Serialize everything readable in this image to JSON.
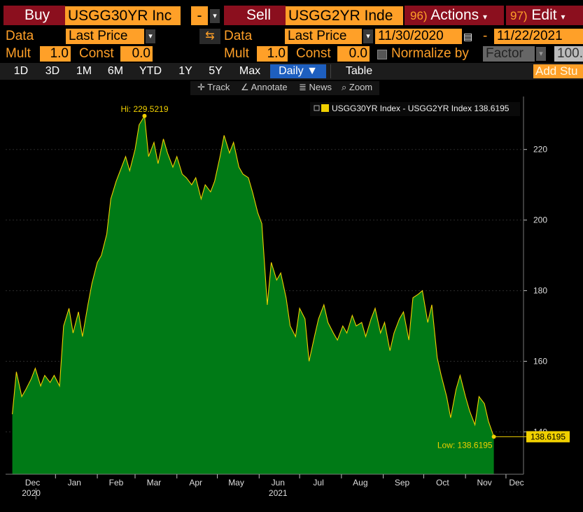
{
  "toolbar": {
    "buy_label": "Buy",
    "buy_ticker": "USGG30YR Inc",
    "op_symbol": "-",
    "sell_label": "Sell",
    "sell_ticker": "USGG2YR Inde",
    "actions_num": "96)",
    "actions_label": "Actions",
    "edit_num": "97)",
    "edit_label": "Edit"
  },
  "data_row": {
    "data_label_1": "Data",
    "field_1": "Last Price",
    "data_label_2": "Data",
    "field_2": "Last Price",
    "start_date": "11/30/2020",
    "separator": "-",
    "end_date": "11/22/2021"
  },
  "mult_row": {
    "mult_label_1": "Mult",
    "mult_value_1": "1.0",
    "const_label_1": "Const",
    "const_value_1": "0.0",
    "mult_label_2": "Mult",
    "mult_value_2": "1.0",
    "const_label_2": "Const",
    "const_value_2": "0.0",
    "normalize_label": "Normalize by",
    "normalize_field": "Factor",
    "normalize_value": "100."
  },
  "periods": [
    "1D",
    "3D",
    "1M",
    "6M",
    "YTD",
    "1Y",
    "5Y",
    "Max"
  ],
  "frequency": "Daily",
  "table_label": "Table",
  "add_study": "Add Stu",
  "tools": {
    "track": "Track",
    "annotate": "Annotate",
    "news": "News",
    "zoom": "Zoom"
  },
  "colors": {
    "area_fill": "#007a16",
    "line": "#f0d000",
    "amber": "#ffa028",
    "header_red": "#8b0f1e",
    "selected_blue": "#1e5fbf"
  },
  "chart_data": {
    "type": "area",
    "legend": "USGG30YR Index - USGG2YR Index 138.6195",
    "legend_position": "top-right",
    "last_value_label": "138.6195",
    "hi_label": "Hi: 229.5219",
    "low_label": "Low: 138.6195",
    "ylim": [
      128,
      235
    ],
    "y_ticks": [
      140,
      160,
      180,
      200,
      220
    ],
    "x_month_labels": [
      "Dec",
      "Jan",
      "Feb",
      "Mar",
      "Apr",
      "May",
      "Jun",
      "Jul",
      "Aug",
      "Sep",
      "Oct",
      "Nov",
      "Dec"
    ],
    "x_year_labels": [
      "2020",
      "2021"
    ],
    "x": [
      "2020-11-30",
      "2020-12-03",
      "2020-12-07",
      "2020-12-10",
      "2020-12-14",
      "2020-12-17",
      "2020-12-21",
      "2020-12-24",
      "2020-12-28",
      "2020-12-31",
      "2021-01-04",
      "2021-01-07",
      "2021-01-11",
      "2021-01-14",
      "2021-01-18",
      "2021-01-21",
      "2021-01-25",
      "2021-01-28",
      "2021-02-01",
      "2021-02-04",
      "2021-02-08",
      "2021-02-11",
      "2021-02-15",
      "2021-02-18",
      "2021-02-22",
      "2021-02-25",
      "2021-03-01",
      "2021-03-04",
      "2021-03-08",
      "2021-03-11",
      "2021-03-15",
      "2021-03-18",
      "2021-03-22",
      "2021-03-25",
      "2021-03-29",
      "2021-04-01",
      "2021-04-05",
      "2021-04-08",
      "2021-04-12",
      "2021-04-15",
      "2021-04-19",
      "2021-04-22",
      "2021-04-26",
      "2021-04-29",
      "2021-05-03",
      "2021-05-06",
      "2021-05-10",
      "2021-05-13",
      "2021-05-17",
      "2021-05-20",
      "2021-05-24",
      "2021-05-27",
      "2021-05-31",
      "2021-06-03",
      "2021-06-07",
      "2021-06-10",
      "2021-06-14",
      "2021-06-17",
      "2021-06-21",
      "2021-06-24",
      "2021-06-28",
      "2021-07-01",
      "2021-07-05",
      "2021-07-08",
      "2021-07-12",
      "2021-07-15",
      "2021-07-19",
      "2021-07-22",
      "2021-07-26",
      "2021-07-29",
      "2021-08-02",
      "2021-08-05",
      "2021-08-09",
      "2021-08-12",
      "2021-08-16",
      "2021-08-19",
      "2021-08-23",
      "2021-08-26",
      "2021-08-30",
      "2021-09-02",
      "2021-09-06",
      "2021-09-09",
      "2021-09-13",
      "2021-09-16",
      "2021-09-20",
      "2021-09-23",
      "2021-09-27",
      "2021-09-30",
      "2021-10-04",
      "2021-10-07",
      "2021-10-11",
      "2021-10-14",
      "2021-10-18",
      "2021-10-21",
      "2021-10-25",
      "2021-10-28",
      "2021-11-01",
      "2021-11-04",
      "2021-11-08",
      "2021-11-11",
      "2021-11-15",
      "2021-11-18",
      "2021-11-22"
    ],
    "series": [
      {
        "values": [
          145,
          157,
          150,
          152,
          155,
          158,
          153,
          156,
          154,
          156,
          153,
          170,
          175,
          168,
          174,
          167,
          176,
          182,
          188,
          190,
          196,
          206,
          211,
          214,
          218,
          214,
          220,
          227,
          229.5,
          218,
          222,
          216,
          223,
          219,
          215,
          218,
          213,
          212,
          210,
          212,
          206,
          210,
          208,
          211,
          218,
          224,
          219,
          222,
          215,
          213,
          212,
          208,
          202,
          199,
          176,
          188,
          183,
          185,
          178,
          170,
          167,
          175,
          172,
          160,
          167,
          172,
          176,
          171,
          168,
          166,
          170,
          168,
          173,
          170,
          171,
          167,
          172,
          175,
          168,
          171,
          163,
          168,
          172,
          174,
          166,
          178,
          179,
          180,
          171,
          176,
          161,
          156,
          150,
          144,
          152,
          156,
          150,
          146,
          142,
          150,
          148,
          143,
          138.6195
        ]
      }
    ]
  }
}
